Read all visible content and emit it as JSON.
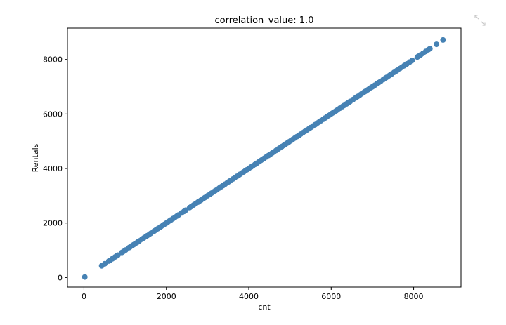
{
  "chart_data": {
    "type": "scatter",
    "title": "correlation_value: 1.0",
    "xlabel": "cnt",
    "ylabel": "Rentals",
    "xlim": [
      -400,
      9150
    ],
    "ylim": [
      -350,
      9150
    ],
    "xticks": [
      0,
      2000,
      4000,
      6000,
      8000
    ],
    "yticks": [
      0,
      2000,
      4000,
      6000,
      8000
    ],
    "xtick_labels": [
      "0",
      "2000",
      "4000",
      "6000",
      "8000"
    ],
    "ytick_labels": [
      "0",
      "2000",
      "4000",
      "6000",
      "8000"
    ],
    "grid": false,
    "point_color": "#4682b4",
    "series": [
      {
        "x": [
          22,
          431,
          506,
          605,
          627,
          683,
          705,
          754,
          795,
          822,
          920,
          959,
          1000,
          1013,
          1096,
          1115,
          1162,
          1204,
          1248,
          1301,
          1341,
          1406,
          1450,
          1501,
          1538,
          1589,
          1623,
          1685,
          1712,
          1749,
          1795,
          1842,
          1872,
          1917,
          1951,
          1996,
          2034,
          2077,
          2114,
          2162,
          2209,
          2252,
          2294,
          2368,
          2424,
          2471,
          2566,
          2608,
          2660,
          2710,
          2765,
          2802,
          2843,
          2898,
          2935,
          2999,
          3053,
          3095,
          3141,
          3190,
          3239,
          3285,
          3331,
          3372,
          3422,
          3469,
          3510,
          3544,
          3614,
          3659,
          3709,
          3761,
          3784,
          3830,
          3873,
          3915,
          3958,
          4010,
          4057,
          4098,
          4150,
          4195,
          4248,
          4294,
          4333,
          4375,
          4427,
          4478,
          4521,
          4570,
          4608,
          4660,
          4713,
          4758,
          4803,
          4849,
          4891,
          4932,
          4978,
          5020,
          5062,
          5115,
          5170,
          5217,
          5260,
          5312,
          5358,
          5409,
          5459,
          5499,
          5558,
          5611,
          5668,
          5713,
          5755,
          5805,
          5847,
          5892,
          5936,
          5985,
          6031,
          6073,
          6118,
          6153,
          6207,
          6269,
          6312,
          6370,
          6421,
          6460,
          6530,
          6591,
          6639,
          6691,
          6734,
          6785,
          6824,
          6883,
          6917,
          6966,
          7001,
          7055,
          7105,
          7148,
          7197,
          7261,
          7290,
          7338,
          7393,
          7429,
          7466,
          7525,
          7570,
          7605,
          7665,
          7713,
          7767,
          7804,
          7836,
          7904,
          7965,
          8090,
          8120,
          8167,
          8227,
          8294,
          8362,
          8395,
          8555,
          8714
        ],
        "y": [
          22,
          431,
          506,
          605,
          627,
          683,
          705,
          754,
          795,
          822,
          920,
          959,
          1000,
          1013,
          1096,
          1115,
          1162,
          1204,
          1248,
          1301,
          1341,
          1406,
          1450,
          1501,
          1538,
          1589,
          1623,
          1685,
          1712,
          1749,
          1795,
          1842,
          1872,
          1917,
          1951,
          1996,
          2034,
          2077,
          2114,
          2162,
          2209,
          2252,
          2294,
          2368,
          2424,
          2471,
          2566,
          2608,
          2660,
          2710,
          2765,
          2802,
          2843,
          2898,
          2935,
          2999,
          3053,
          3095,
          3141,
          3190,
          3239,
          3285,
          3331,
          3372,
          3422,
          3469,
          3510,
          3544,
          3614,
          3659,
          3709,
          3761,
          3784,
          3830,
          3873,
          3915,
          3958,
          4010,
          4057,
          4098,
          4150,
          4195,
          4248,
          4294,
          4333,
          4375,
          4427,
          4478,
          4521,
          4570,
          4608,
          4660,
          4713,
          4758,
          4803,
          4849,
          4891,
          4932,
          4978,
          5020,
          5062,
          5115,
          5170,
          5217,
          5260,
          5312,
          5358,
          5409,
          5459,
          5499,
          5558,
          5611,
          5668,
          5713,
          5755,
          5805,
          5847,
          5892,
          5936,
          5985,
          6031,
          6073,
          6118,
          6153,
          6207,
          6269,
          6312,
          6370,
          6421,
          6460,
          6530,
          6591,
          6639,
          6691,
          6734,
          6785,
          6824,
          6883,
          6917,
          6966,
          7001,
          7055,
          7105,
          7148,
          7197,
          7261,
          7290,
          7338,
          7393,
          7429,
          7466,
          7525,
          7570,
          7605,
          7665,
          7713,
          7767,
          7804,
          7836,
          7904,
          7965,
          8090,
          8120,
          8167,
          8227,
          8294,
          8362,
          8395,
          8555,
          8714
        ]
      }
    ]
  },
  "toolbar": {
    "expand_icon": "expand-icon"
  }
}
